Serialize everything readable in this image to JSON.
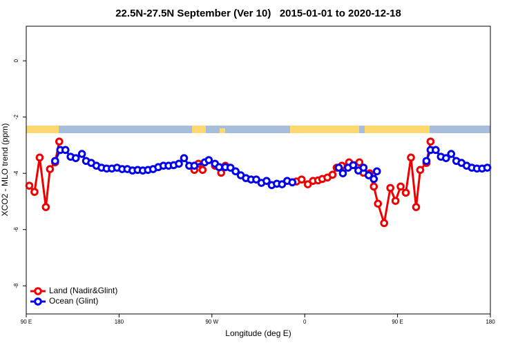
{
  "chart_data": {
    "type": "line",
    "title": "22.5N-27.5N September (Ver 10)   2015-01-01 to 2020-12-18",
    "xlabel": "Longitude (deg E)",
    "ylabel": "XCO2 - MLO trend (ppm)",
    "xlim": [
      90,
      540
    ],
    "xticks": [
      {
        "value": 90,
        "label": "90 E"
      },
      180,
      {
        "value": 270,
        "label": "90 W"
      },
      {
        "value": 360,
        "label": "0"
      },
      {
        "value": 450,
        "label": "90 E"
      },
      {
        "value": 540,
        "label": "180"
      }
    ],
    "ylim": [
      -9,
      1.23
    ],
    "yticks": [
      0,
      -2,
      -4,
      -6,
      -8
    ],
    "legend": "bottom-left",
    "series": [
      {
        "name": "Land (Nadir&Glint)",
        "color": "#ee0000",
        "x": [
          93,
          98,
          103,
          109,
          113,
          118,
          122,
          null,
          253,
          257,
          261,
          null,
          273,
          279,
          283,
          null,
          352,
          357,
          363,
          368,
          373,
          377,
          382,
          387,
          391,
          396,
          403,
          413,
          417,
          423,
          427,
          431,
          437,
          443,
          448,
          453,
          458,
          463,
          468,
          472,
          478,
          482
        ],
        "values": [
          -4.44,
          -4.66,
          -3.44,
          -5.2,
          -3.85,
          -3.61,
          -2.87,
          null,
          -3.88,
          -3.66,
          -3.88,
          null,
          -3.73,
          -3.98,
          -3.73,
          null,
          -4.29,
          -4.22,
          -4.39,
          -4.27,
          -4.25,
          -4.2,
          -4.15,
          -4.05,
          -3.8,
          -3.73,
          -3.61,
          -3.61,
          -3.98,
          -4.0,
          -4.47,
          -5.08,
          -5.77,
          -4.52,
          -4.98,
          -4.47,
          -4.69,
          -3.44,
          -5.2,
          -3.88,
          -3.63,
          -2.87
        ]
      },
      {
        "name": "Ocean (Glint)",
        "color": "#0000ee",
        "x": [
          118,
          123,
          128,
          133,
          138,
          144,
          148,
          153,
          158,
          163,
          168,
          173,
          178,
          183,
          188,
          193,
          198,
          203,
          208,
          213,
          218,
          223,
          228,
          233,
          238,
          243,
          248,
          253,
          263,
          267,
          273,
          277,
          283,
          288,
          293,
          298,
          303,
          308,
          313,
          318,
          323,
          328,
          333,
          338,
          343,
          348,
          null,
          393,
          397,
          402,
          407,
          412,
          417,
          422,
          427,
          430,
          null,
          478,
          482,
          487,
          492,
          497,
          502,
          507,
          512,
          517,
          522,
          527,
          532,
          537
        ],
        "values": [
          -3.56,
          -3.17,
          -3.17,
          -3.41,
          -3.46,
          -3.31,
          -3.56,
          -3.63,
          -3.73,
          -3.8,
          -3.83,
          -3.83,
          -3.8,
          -3.85,
          -3.85,
          -3.9,
          -3.88,
          -3.9,
          -3.88,
          -3.85,
          -3.78,
          -3.73,
          -3.73,
          -3.71,
          -3.66,
          -3.46,
          -3.73,
          -3.73,
          -3.61,
          -3.53,
          -3.66,
          -3.78,
          -3.78,
          -3.8,
          -3.93,
          -4.07,
          -4.17,
          -4.22,
          -4.22,
          -4.34,
          -4.27,
          -4.42,
          -4.37,
          -4.39,
          -4.27,
          -4.32,
          null,
          -3.8,
          -4.0,
          -3.8,
          -3.71,
          -3.9,
          -3.8,
          -4.07,
          -4.2,
          -3.93,
          null,
          -3.56,
          -3.17,
          -3.17,
          -3.41,
          -3.46,
          -3.31,
          -3.56,
          -3.63,
          -3.73,
          -3.8,
          -3.83,
          -3.83,
          -3.8
        ]
      }
    ]
  }
}
